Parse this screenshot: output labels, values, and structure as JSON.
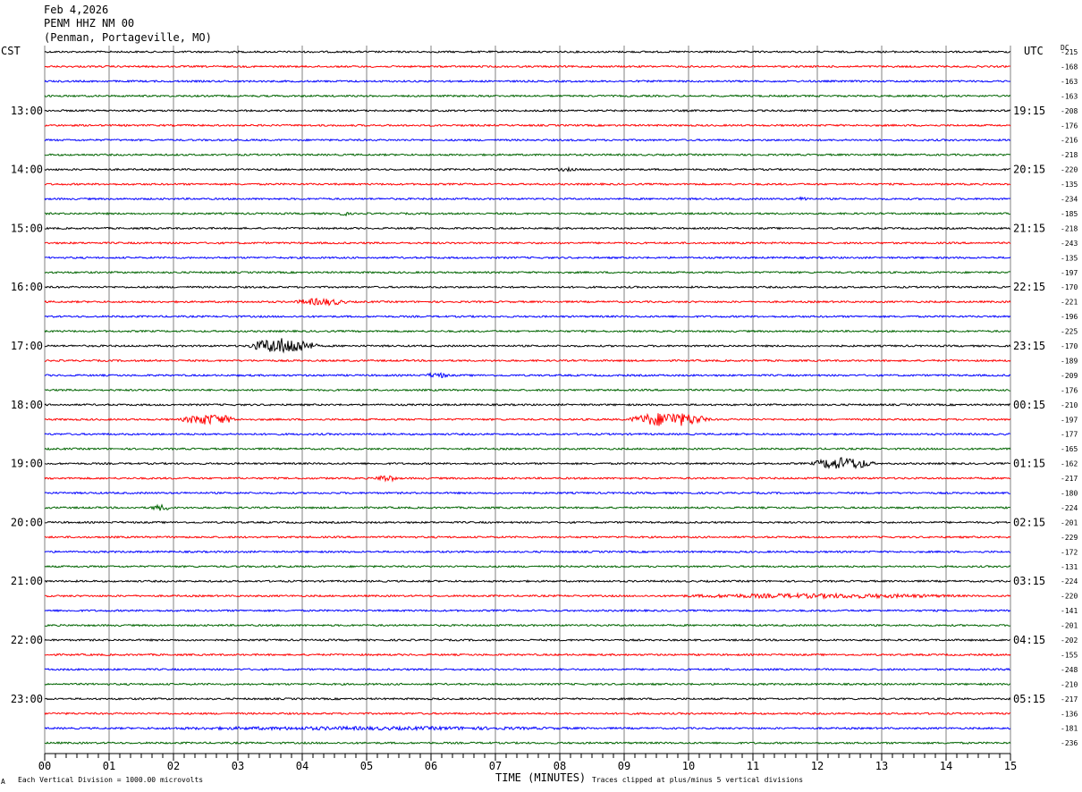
{
  "header": {
    "date": "Feb 4,2026",
    "station": "PENM HHZ NM 00",
    "location": "(Penman, Portageville, MO)"
  },
  "left_zone": "CST",
  "right_zone": "UTC",
  "dc_label": "DC",
  "footer": {
    "scale_note": "Each Vertical Division = 1000.00 microvolts",
    "clip_note": "Traces clipped at plus/minus 5 vertical divisions",
    "corner_mark": "A"
  },
  "colors": {
    "trace_cycle": [
      "#000000",
      "#ff0000",
      "#0000ff",
      "#006400"
    ],
    "grid": "#808080"
  },
  "chart_data": {
    "type": "helicorder",
    "title": "PENM HHZ NM 00",
    "xlabel": "TIME (MINUTES)",
    "x_ticks": [
      "00",
      "01",
      "02",
      "03",
      "04",
      "05",
      "06",
      "07",
      "08",
      "09",
      "10",
      "11",
      "12",
      "13",
      "14",
      "15"
    ],
    "xlim": [
      0,
      15
    ],
    "minutes_per_line": 15,
    "first_line_cst": "12:00",
    "line_count": 48,
    "left_hour_labels": [
      "13:00",
      "14:00",
      "15:00",
      "16:00",
      "17:00",
      "18:00",
      "19:00",
      "20:00",
      "21:00",
      "22:00",
      "23:00"
    ],
    "right_hour_labels": [
      "19:15",
      "20:15",
      "21:15",
      "22:15",
      "23:15",
      "00:15",
      "01:15",
      "02:15",
      "03:15",
      "04:15",
      "05:15"
    ],
    "hour_label_lines": [
      4,
      8,
      12,
      16,
      20,
      24,
      28,
      32,
      36,
      40,
      44
    ],
    "dc_offsets": [
      -215,
      -168,
      -163,
      -163,
      -208,
      -176,
      -216,
      -218,
      -220,
      -135,
      -234,
      -185,
      -218,
      -243,
      -135,
      -197,
      -170,
      -221,
      -196,
      -225,
      -170,
      -189,
      -209,
      -176,
      -210,
      -197,
      -177,
      -165,
      -162,
      -217,
      -180,
      -224,
      -201,
      -229,
      -172,
      -131,
      -224,
      -220,
      -141,
      -201,
      -202,
      -155,
      -248,
      -210,
      -217,
      -136,
      -181,
      -236
    ],
    "events": [
      {
        "line": 17,
        "minute": 4.3,
        "amp": 4.0,
        "dur": 1.0
      },
      {
        "line": 20,
        "minute": 3.7,
        "amp": 9.0,
        "dur": 1.2
      },
      {
        "line": 22,
        "minute": 6.1,
        "amp": 3.0,
        "dur": 0.5
      },
      {
        "line": 25,
        "minute": 2.55,
        "amp": 6.0,
        "dur": 1.0
      },
      {
        "line": 25,
        "minute": 9.7,
        "amp": 8.0,
        "dur": 1.4
      },
      {
        "line": 28,
        "minute": 12.4,
        "amp": 7.0,
        "dur": 1.1
      },
      {
        "line": 29,
        "minute": 5.3,
        "amp": 4.0,
        "dur": 0.4
      },
      {
        "line": 31,
        "minute": 1.8,
        "amp": 3.5,
        "dur": 0.4
      },
      {
        "line": 37,
        "minute": 12.0,
        "amp": 2.6,
        "dur": 6.0
      },
      {
        "line": 46,
        "minute": 5.0,
        "amp": 2.0,
        "dur": 10.0
      },
      {
        "line": 8,
        "minute": 8.1,
        "amp": 2.0,
        "dur": 0.5
      },
      {
        "line": 10,
        "minute": 11.8,
        "amp": 2.5,
        "dur": 0.3
      },
      {
        "line": 11,
        "minute": 4.65,
        "amp": 2.5,
        "dur": 0.2
      }
    ]
  }
}
